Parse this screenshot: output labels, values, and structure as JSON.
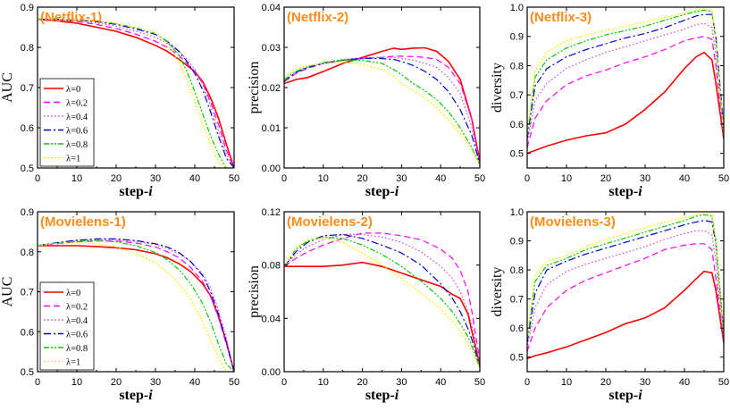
{
  "chart_data": [
    {
      "type": "line",
      "title": "(Netflix-1)",
      "xlabel": "step-",
      "xlabel_italic": "i",
      "ylabel": "AUC",
      "xlim": [
        0,
        50
      ],
      "ylim": [
        0.5,
        0.9
      ],
      "xticks": [
        "0",
        "10",
        "20",
        "30",
        "40",
        "50"
      ],
      "yticks": [
        "0.5",
        "0.6",
        "0.7",
        "0.8",
        "0.9"
      ],
      "grid": false,
      "legend": "lower-left",
      "x": [
        0,
        5,
        10,
        15,
        20,
        25,
        30,
        33,
        36,
        38,
        40,
        42,
        44,
        46,
        48,
        50
      ],
      "series": [
        {
          "name": "λ=0",
          "values": [
            0.87,
            0.866,
            0.86,
            0.85,
            0.84,
            0.825,
            0.805,
            0.79,
            0.77,
            0.755,
            0.74,
            0.715,
            0.675,
            0.625,
            0.56,
            0.5
          ]
        },
        {
          "name": "λ=0.2",
          "values": [
            0.87,
            0.868,
            0.864,
            0.857,
            0.847,
            0.833,
            0.815,
            0.8,
            0.78,
            0.76,
            0.74,
            0.71,
            0.665,
            0.61,
            0.545,
            0.5
          ]
        },
        {
          "name": "λ=0.4",
          "values": [
            0.87,
            0.869,
            0.866,
            0.861,
            0.853,
            0.84,
            0.825,
            0.81,
            0.79,
            0.77,
            0.745,
            0.71,
            0.655,
            0.595,
            0.535,
            0.5
          ]
        },
        {
          "name": "λ=0.6",
          "values": [
            0.87,
            0.87,
            0.868,
            0.864,
            0.857,
            0.846,
            0.832,
            0.815,
            0.79,
            0.765,
            0.735,
            0.695,
            0.64,
            0.58,
            0.525,
            0.5
          ]
        },
        {
          "name": "λ=0.8",
          "values": [
            0.87,
            0.871,
            0.869,
            0.866,
            0.859,
            0.849,
            0.835,
            0.815,
            0.78,
            0.74,
            0.69,
            0.635,
            0.58,
            0.535,
            0.5,
            0.5
          ]
        },
        {
          "name": "λ=1",
          "values": [
            0.87,
            0.871,
            0.87,
            0.867,
            0.86,
            0.85,
            0.835,
            0.81,
            0.765,
            0.72,
            0.665,
            0.61,
            0.56,
            0.515,
            0.5,
            0.5
          ]
        }
      ]
    },
    {
      "type": "line",
      "title": "(Netflix-2)",
      "xlabel": "step-",
      "xlabel_italic": "i",
      "ylabel": "precision",
      "xlim": [
        0,
        50
      ],
      "ylim": [
        0,
        0.04
      ],
      "xticks": [
        "0",
        "10",
        "20",
        "30",
        "40",
        "50"
      ],
      "yticks": [
        "0.00",
        "0.01",
        "0.02",
        "0.03",
        "0.04"
      ],
      "grid": false,
      "x": [
        0,
        3,
        6,
        10,
        15,
        20,
        25,
        28,
        30,
        33,
        36,
        39,
        42,
        45,
        48,
        50
      ],
      "series": [
        {
          "name": "λ=0",
          "values": [
            0.021,
            0.022,
            0.0225,
            0.024,
            0.026,
            0.0275,
            0.029,
            0.0298,
            0.0295,
            0.0298,
            0.0299,
            0.029,
            0.0265,
            0.022,
            0.012,
            0.0015
          ]
        },
        {
          "name": "λ=0.2",
          "values": [
            0.0215,
            0.0235,
            0.0248,
            0.026,
            0.0268,
            0.0272,
            0.0275,
            0.0278,
            0.0278,
            0.0277,
            0.0275,
            0.027,
            0.025,
            0.021,
            0.012,
            0.001
          ]
        },
        {
          "name": "λ=0.4",
          "values": [
            0.022,
            0.024,
            0.025,
            0.0262,
            0.027,
            0.0274,
            0.0276,
            0.0275,
            0.0272,
            0.0268,
            0.026,
            0.025,
            0.0225,
            0.0185,
            0.01,
            0.001
          ]
        },
        {
          "name": "λ=0.6",
          "values": [
            0.0215,
            0.0238,
            0.025,
            0.026,
            0.0268,
            0.0273,
            0.0272,
            0.027,
            0.0265,
            0.0255,
            0.024,
            0.022,
            0.019,
            0.0145,
            0.008,
            0.001
          ]
        },
        {
          "name": "λ=0.8",
          "values": [
            0.022,
            0.024,
            0.0252,
            0.0262,
            0.0268,
            0.0268,
            0.026,
            0.0245,
            0.0232,
            0.021,
            0.0192,
            0.017,
            0.014,
            0.01,
            0.005,
            0.0008
          ]
        },
        {
          "name": "λ=1",
          "values": [
            0.0225,
            0.0245,
            0.0255,
            0.026,
            0.0262,
            0.0258,
            0.0245,
            0.0228,
            0.021,
            0.0192,
            0.0175,
            0.015,
            0.012,
            0.0085,
            0.0045,
            0.0008
          ]
        }
      ]
    },
    {
      "type": "line",
      "title": "(Netflix-3)",
      "xlabel": "step-",
      "xlabel_italic": "i",
      "ylabel": "diversity",
      "xlim": [
        0,
        50
      ],
      "ylim": [
        0.45,
        1.0
      ],
      "xticks": [
        "0",
        "10",
        "20",
        "30",
        "40",
        "50"
      ],
      "yticks": [
        "0.5",
        "0.6",
        "0.7",
        "0.8",
        "0.9",
        "1.0"
      ],
      "grid": false,
      "x": [
        0,
        2,
        5,
        10,
        15,
        20,
        25,
        30,
        35,
        40,
        43,
        45,
        47,
        48,
        50
      ],
      "series": [
        {
          "name": "λ=0",
          "values": [
            0.5,
            0.51,
            0.525,
            0.545,
            0.56,
            0.57,
            0.6,
            0.65,
            0.71,
            0.79,
            0.83,
            0.845,
            0.82,
            0.74,
            0.55
          ]
        },
        {
          "name": "λ=0.2",
          "values": [
            0.52,
            0.62,
            0.68,
            0.735,
            0.765,
            0.785,
            0.81,
            0.83,
            0.855,
            0.885,
            0.895,
            0.9,
            0.89,
            0.8,
            0.55
          ]
        },
        {
          "name": "λ=0.4",
          "values": [
            0.53,
            0.68,
            0.74,
            0.79,
            0.82,
            0.845,
            0.865,
            0.885,
            0.905,
            0.925,
            0.94,
            0.945,
            0.93,
            0.84,
            0.56
          ]
        },
        {
          "name": "λ=0.6",
          "values": [
            0.55,
            0.73,
            0.79,
            0.83,
            0.855,
            0.875,
            0.895,
            0.91,
            0.93,
            0.955,
            0.97,
            0.975,
            0.975,
            0.9,
            0.58
          ]
        },
        {
          "name": "λ=0.8",
          "values": [
            0.56,
            0.76,
            0.82,
            0.86,
            0.885,
            0.905,
            0.92,
            0.935,
            0.955,
            0.975,
            0.985,
            0.99,
            0.985,
            0.88,
            0.56
          ]
        },
        {
          "name": "λ=1",
          "values": [
            0.57,
            0.78,
            0.845,
            0.885,
            0.905,
            0.92,
            0.935,
            0.95,
            0.965,
            0.98,
            0.99,
            0.995,
            0.99,
            0.88,
            0.56
          ]
        }
      ]
    },
    {
      "type": "line",
      "title": "(Movielens-1)",
      "xlabel": "step-",
      "xlabel_italic": "i",
      "ylabel": "AUC",
      "xlim": [
        0,
        50
      ],
      "ylim": [
        0.5,
        0.9
      ],
      "xticks": [
        "0",
        "10",
        "20",
        "30",
        "40",
        "50"
      ],
      "yticks": [
        "0.5",
        "0.6",
        "0.7",
        "0.8",
        "0.9"
      ],
      "grid": false,
      "legend": "lower-left",
      "x": [
        0,
        5,
        10,
        15,
        20,
        25,
        30,
        33,
        36,
        39,
        42,
        44,
        46,
        48,
        50
      ],
      "series": [
        {
          "name": "λ=0",
          "values": [
            0.815,
            0.815,
            0.815,
            0.813,
            0.81,
            0.805,
            0.795,
            0.785,
            0.77,
            0.75,
            0.72,
            0.69,
            0.64,
            0.575,
            0.5
          ]
        },
        {
          "name": "λ=0.2",
          "values": [
            0.815,
            0.82,
            0.825,
            0.827,
            0.827,
            0.822,
            0.812,
            0.8,
            0.785,
            0.76,
            0.725,
            0.69,
            0.635,
            0.57,
            0.5
          ]
        },
        {
          "name": "λ=0.4",
          "values": [
            0.815,
            0.822,
            0.828,
            0.83,
            0.83,
            0.826,
            0.818,
            0.808,
            0.795,
            0.775,
            0.745,
            0.71,
            0.655,
            0.585,
            0.5
          ]
        },
        {
          "name": "λ=0.6",
          "values": [
            0.815,
            0.823,
            0.829,
            0.832,
            0.832,
            0.828,
            0.82,
            0.812,
            0.798,
            0.775,
            0.74,
            0.7,
            0.645,
            0.575,
            0.5
          ]
        },
        {
          "name": "λ=0.8",
          "values": [
            0.815,
            0.822,
            0.826,
            0.828,
            0.825,
            0.815,
            0.798,
            0.78,
            0.755,
            0.72,
            0.67,
            0.625,
            0.57,
            0.52,
            0.5
          ]
        },
        {
          "name": "λ=1",
          "values": [
            0.815,
            0.821,
            0.823,
            0.82,
            0.812,
            0.795,
            0.772,
            0.75,
            0.72,
            0.68,
            0.625,
            0.58,
            0.535,
            0.5,
            0.5
          ]
        }
      ]
    },
    {
      "type": "line",
      "title": "(Movielens-2)",
      "xlabel": "step-",
      "xlabel_italic": "i",
      "ylabel": "precision",
      "xlim": [
        0,
        50
      ],
      "ylim": [
        0,
        0.12
      ],
      "xticks": [
        "0",
        "10",
        "20",
        "30",
        "40",
        "50"
      ],
      "yticks": [
        "0.00",
        "0.04",
        "0.08",
        "0.12"
      ],
      "grid": false,
      "x": [
        0,
        3,
        6,
        10,
        15,
        20,
        25,
        30,
        35,
        40,
        43,
        45,
        47,
        48,
        50
      ],
      "series": [
        {
          "name": "λ=0",
          "values": [
            0.079,
            0.079,
            0.079,
            0.079,
            0.08,
            0.082,
            0.079,
            0.074,
            0.069,
            0.064,
            0.058,
            0.055,
            0.043,
            0.03,
            0.005
          ]
        },
        {
          "name": "λ=0.2",
          "values": [
            0.079,
            0.085,
            0.09,
            0.095,
            0.1,
            0.104,
            0.104,
            0.102,
            0.099,
            0.092,
            0.085,
            0.076,
            0.06,
            0.045,
            0.008
          ]
        },
        {
          "name": "λ=0.4",
          "values": [
            0.079,
            0.088,
            0.094,
            0.099,
            0.103,
            0.103,
            0.101,
            0.097,
            0.09,
            0.079,
            0.07,
            0.06,
            0.045,
            0.035,
            0.006
          ]
        },
        {
          "name": "λ=0.6",
          "values": [
            0.079,
            0.09,
            0.097,
            0.102,
            0.103,
            0.1,
            0.095,
            0.089,
            0.08,
            0.066,
            0.055,
            0.045,
            0.032,
            0.024,
            0.004
          ]
        },
        {
          "name": "λ=0.8",
          "values": [
            0.079,
            0.092,
            0.098,
            0.101,
            0.1,
            0.095,
            0.088,
            0.079,
            0.068,
            0.055,
            0.045,
            0.036,
            0.026,
            0.019,
            0.003
          ]
        },
        {
          "name": "λ=1",
          "values": [
            0.079,
            0.093,
            0.099,
            0.1,
            0.097,
            0.089,
            0.08,
            0.07,
            0.059,
            0.047,
            0.038,
            0.03,
            0.021,
            0.015,
            0.003
          ]
        }
      ]
    },
    {
      "type": "line",
      "title": "(Movielens-3)",
      "xlabel": "step-",
      "xlabel_italic": "i",
      "ylabel": "diversity",
      "xlim": [
        0,
        50
      ],
      "ylim": [
        0.45,
        1.0
      ],
      "xticks": [
        "0",
        "10",
        "20",
        "30",
        "40",
        "50"
      ],
      "yticks": [
        "0.5",
        "0.6",
        "0.7",
        "0.8",
        "0.9",
        "1.0"
      ],
      "grid": false,
      "x": [
        0,
        2,
        5,
        10,
        15,
        20,
        25,
        30,
        35,
        40,
        43,
        45,
        47,
        48,
        50
      ],
      "series": [
        {
          "name": "λ=0",
          "values": [
            0.495,
            0.505,
            0.515,
            0.535,
            0.56,
            0.585,
            0.615,
            0.635,
            0.67,
            0.73,
            0.77,
            0.795,
            0.79,
            0.73,
            0.55
          ]
        },
        {
          "name": "λ=0.2",
          "values": [
            0.52,
            0.6,
            0.67,
            0.73,
            0.765,
            0.79,
            0.815,
            0.84,
            0.87,
            0.885,
            0.89,
            0.89,
            0.87,
            0.77,
            0.55
          ]
        },
        {
          "name": "λ=0.4",
          "values": [
            0.53,
            0.67,
            0.75,
            0.795,
            0.82,
            0.84,
            0.86,
            0.88,
            0.905,
            0.925,
            0.935,
            0.935,
            0.92,
            0.83,
            0.56
          ]
        },
        {
          "name": "λ=0.6",
          "values": [
            0.55,
            0.72,
            0.8,
            0.83,
            0.855,
            0.875,
            0.895,
            0.915,
            0.935,
            0.955,
            0.965,
            0.97,
            0.965,
            0.89,
            0.58
          ]
        },
        {
          "name": "λ=0.8",
          "values": [
            0.56,
            0.76,
            0.815,
            0.84,
            0.87,
            0.89,
            0.91,
            0.93,
            0.95,
            0.97,
            0.985,
            0.99,
            0.985,
            0.9,
            0.57
          ]
        },
        {
          "name": "λ=1",
          "values": [
            0.57,
            0.78,
            0.83,
            0.85,
            0.88,
            0.905,
            0.925,
            0.945,
            0.965,
            0.98,
            0.99,
            0.995,
            0.99,
            0.9,
            0.57
          ]
        }
      ]
    }
  ],
  "series_styles": [
    {
      "color": "#ff0000",
      "dash": ""
    },
    {
      "color": "#ff00ff",
      "dash": "7,4"
    },
    {
      "color": "#cc44cc",
      "dash": "1.5,2.5"
    },
    {
      "color": "#0000cc",
      "dash": "8,3,2,3"
    },
    {
      "color": "#00cc00",
      "dash": "6,2,2,2,2,2"
    },
    {
      "color": "#ffee00",
      "dash": "2,2"
    }
  ]
}
